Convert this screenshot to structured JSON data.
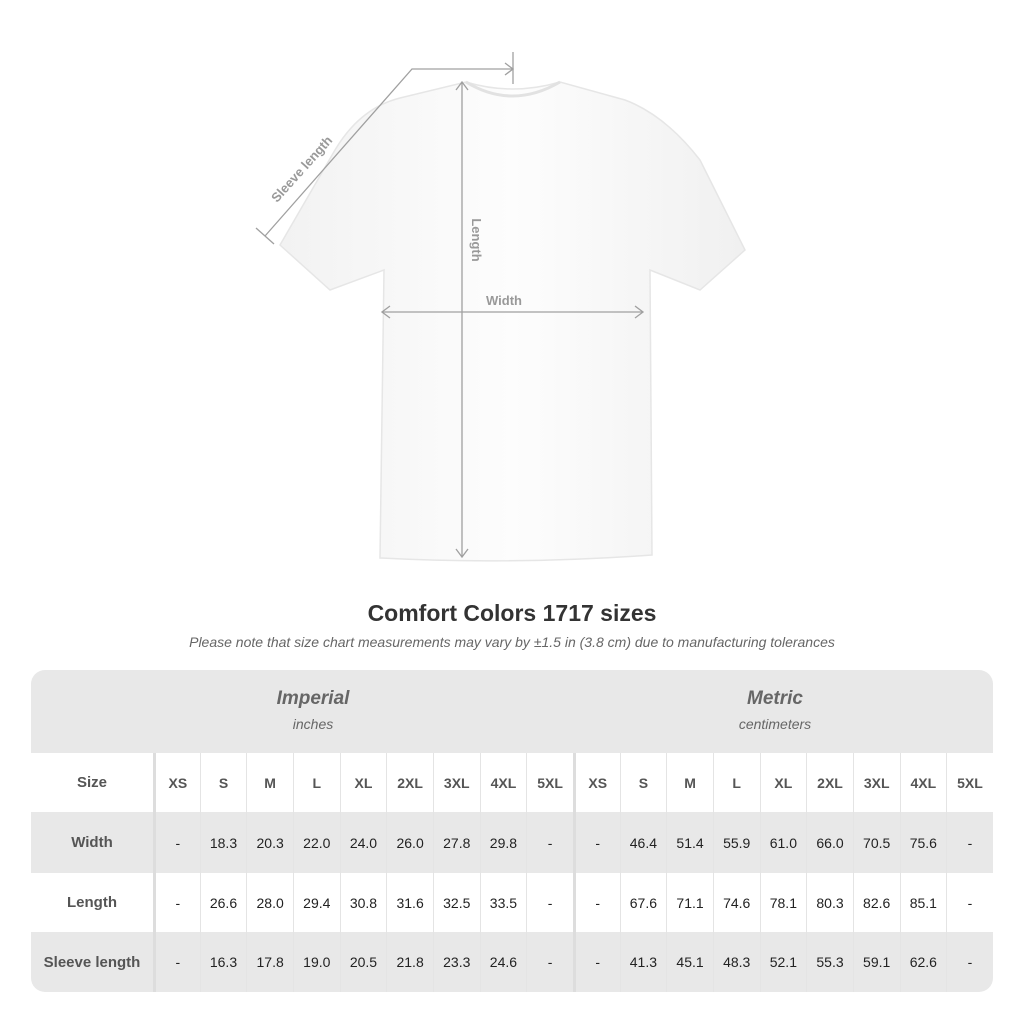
{
  "diagram": {
    "sleeve_label": "Sleeve length",
    "length_label": "Length",
    "width_label": "Width"
  },
  "title": "Comfort Colors 1717 sizes",
  "note": "Please note that size chart measurements may vary by ±1.5 in (3.8 cm) due to manufacturing tolerances",
  "table": {
    "imperial": {
      "title": "Imperial",
      "unit": "inches"
    },
    "metric": {
      "title": "Metric",
      "unit": "centimeters"
    },
    "size_label": "Size",
    "sizes": [
      "XS",
      "S",
      "M",
      "L",
      "XL",
      "2XL",
      "3XL",
      "4XL",
      "5XL"
    ],
    "rows": [
      {
        "label": "Width",
        "imperial": [
          "-",
          "18.3",
          "20.3",
          "22.0",
          "24.0",
          "26.0",
          "27.8",
          "29.8",
          "-"
        ],
        "metric": [
          "-",
          "46.4",
          "51.4",
          "55.9",
          "61.0",
          "66.0",
          "70.5",
          "75.6",
          "-"
        ]
      },
      {
        "label": "Length",
        "imperial": [
          "-",
          "26.6",
          "28.0",
          "29.4",
          "30.8",
          "31.6",
          "32.5",
          "33.5",
          "-"
        ],
        "metric": [
          "-",
          "67.6",
          "71.1",
          "74.6",
          "78.1",
          "80.3",
          "82.6",
          "85.1",
          "-"
        ]
      },
      {
        "label": "Sleeve length",
        "imperial": [
          "-",
          "16.3",
          "17.8",
          "19.0",
          "20.5",
          "21.8",
          "23.3",
          "24.6",
          "-"
        ],
        "metric": [
          "-",
          "41.3",
          "45.1",
          "48.3",
          "52.1",
          "55.3",
          "59.1",
          "62.6",
          "-"
        ]
      }
    ]
  },
  "colors": {
    "band": "#e8e8e8",
    "text": "#333333",
    "measure_line": "#a0a0a0"
  }
}
